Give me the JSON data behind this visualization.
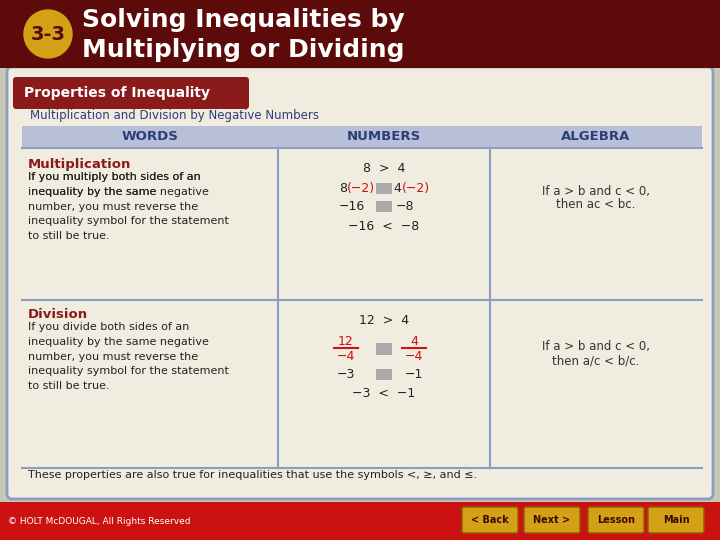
{
  "title_line1": "Solving Inequalities by",
  "title_line2": "Multiplying or Dividing",
  "lesson_num": "3-3",
  "header_bg": "#5c0a0a",
  "badge_color": "#d4a017",
  "badge_text_color": "#5c0a0a",
  "content_bg": "#f0ede0",
  "content_border": "#8b9dc3",
  "box_title_bg": "#8b1a1a",
  "box_title_text": "Properties of Inequality",
  "subtitle": "Multiplication and Division by Negative Numbers",
  "col_headers": [
    "WORDS",
    "NUMBERS",
    "ALGEBRA"
  ],
  "col_header_bg": "#b8bfd8",
  "col_header_text_color": "#2c3e7a",
  "row1_title": "Multiplication",
  "row1_words": "If you multiply both sides of an\ninequality by the same negative\nnumber, you must reverse the\ninequality symbol for the statement\nto still be true.",
  "row2_title": "Division",
  "row2_words": "If you divide both sides of an\ninequality by the same negative\nnumber, you must reverse the\ninequality symbol for the statement\nto still be true.",
  "footer_text": "These properties are also true for inequalities that use the symbols <, ≥, and ≤.",
  "copyright": "© HOLT McDOUGAL, All Rights Reserved",
  "bottom_bar_color": "#cc1111",
  "nav_buttons": [
    "< Back",
    "Next >",
    "Lesson",
    "Main"
  ],
  "nav_btn_color": "#d4a017",
  "section_title_color": "#8b1a1a",
  "negative_color": "#cc1111",
  "algebra_text_color": "#333333",
  "table_line_color": "#8b9dc3",
  "outer_bg": "#c8c8b8"
}
